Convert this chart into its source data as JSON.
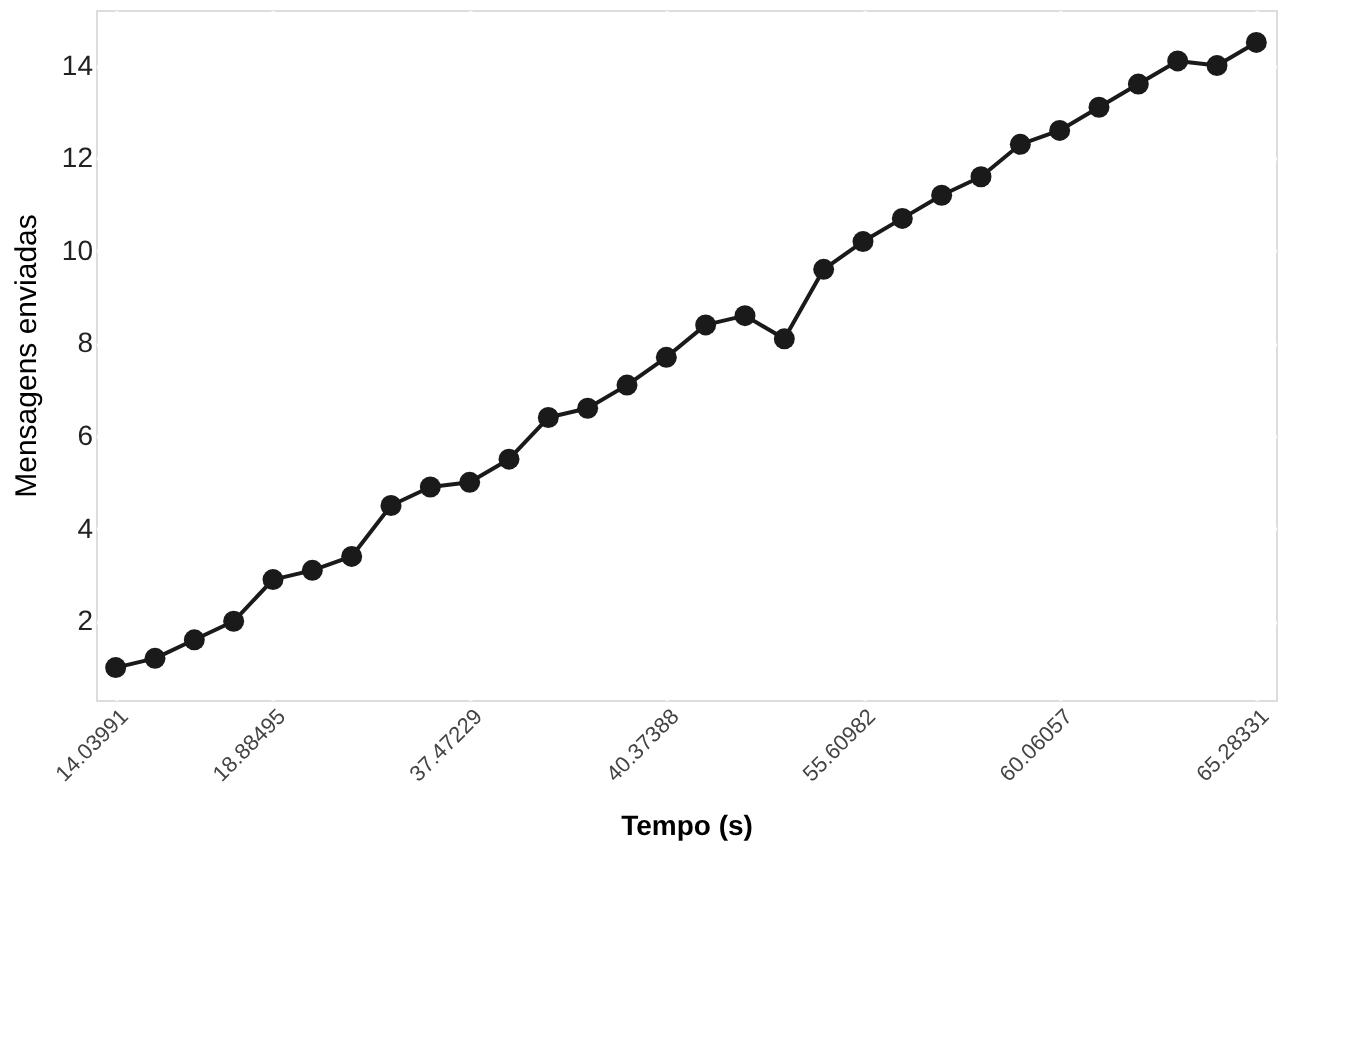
{
  "chart_data": {
    "type": "line",
    "xlabel": "Tempo (s)",
    "ylabel": "Mensagens enviadas",
    "categories": [
      "14.03991",
      null,
      null,
      null,
      "18.88495",
      null,
      null,
      null,
      null,
      "37.47229",
      null,
      null,
      null,
      null,
      "40.37388",
      null,
      null,
      null,
      null,
      "55.60982",
      null,
      null,
      null,
      null,
      "60.06057",
      null,
      null,
      null,
      null,
      "65.28331"
    ],
    "series": [
      {
        "color": "#1a1a1a",
        "values": [
          1.0,
          1.2,
          1.6,
          2.0,
          2.9,
          3.1,
          3.4,
          4.5,
          4.9,
          5.0,
          5.5,
          6.4,
          6.6,
          7.1,
          7.7,
          8.4,
          8.6,
          8.1,
          9.6,
          10.2,
          10.7,
          11.2,
          11.6,
          12.3,
          12.6,
          13.1,
          13.6,
          14.1,
          14.0,
          14.5
        ]
      }
    ],
    "ylim": [
      0.3,
      15.2
    ],
    "yticks": [
      2,
      4,
      6,
      8,
      10,
      12,
      14
    ],
    "grid": true,
    "marker": "circle",
    "line_style": "solid"
  }
}
